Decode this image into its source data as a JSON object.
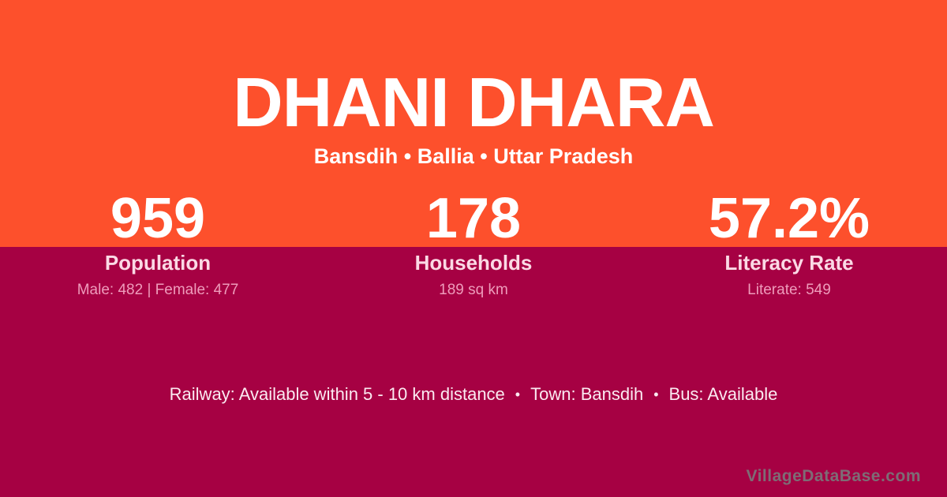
{
  "title": "DHANI DHARA",
  "subtitle": "Bansdih • Ballia • Uttar Pradesh",
  "stats": [
    {
      "value": "959",
      "label": "Population",
      "detail": "Male: 482 | Female: 477"
    },
    {
      "value": "178",
      "label": "Households",
      "detail": "189 sq km"
    },
    {
      "value": "57.2%",
      "label": "Literacy Rate",
      "detail": "Literate: 549"
    }
  ],
  "footer": {
    "items": [
      "Railway: Available within 5 - 10 km distance",
      "Town: Bansdih",
      "Bus: Available"
    ],
    "separator": "•"
  },
  "watermark": "VillageDataBase.com",
  "colors": {
    "top_bg": "#FD502C",
    "bottom_bg": "#A60143",
    "title_text": "#FFFFFF",
    "value_text": "#FFFFFF",
    "label_text": "#FBD9E5",
    "detail_text": "#EE9CBB",
    "footer_text": "#FBEAF1",
    "watermark_text": "#7E6C75"
  }
}
